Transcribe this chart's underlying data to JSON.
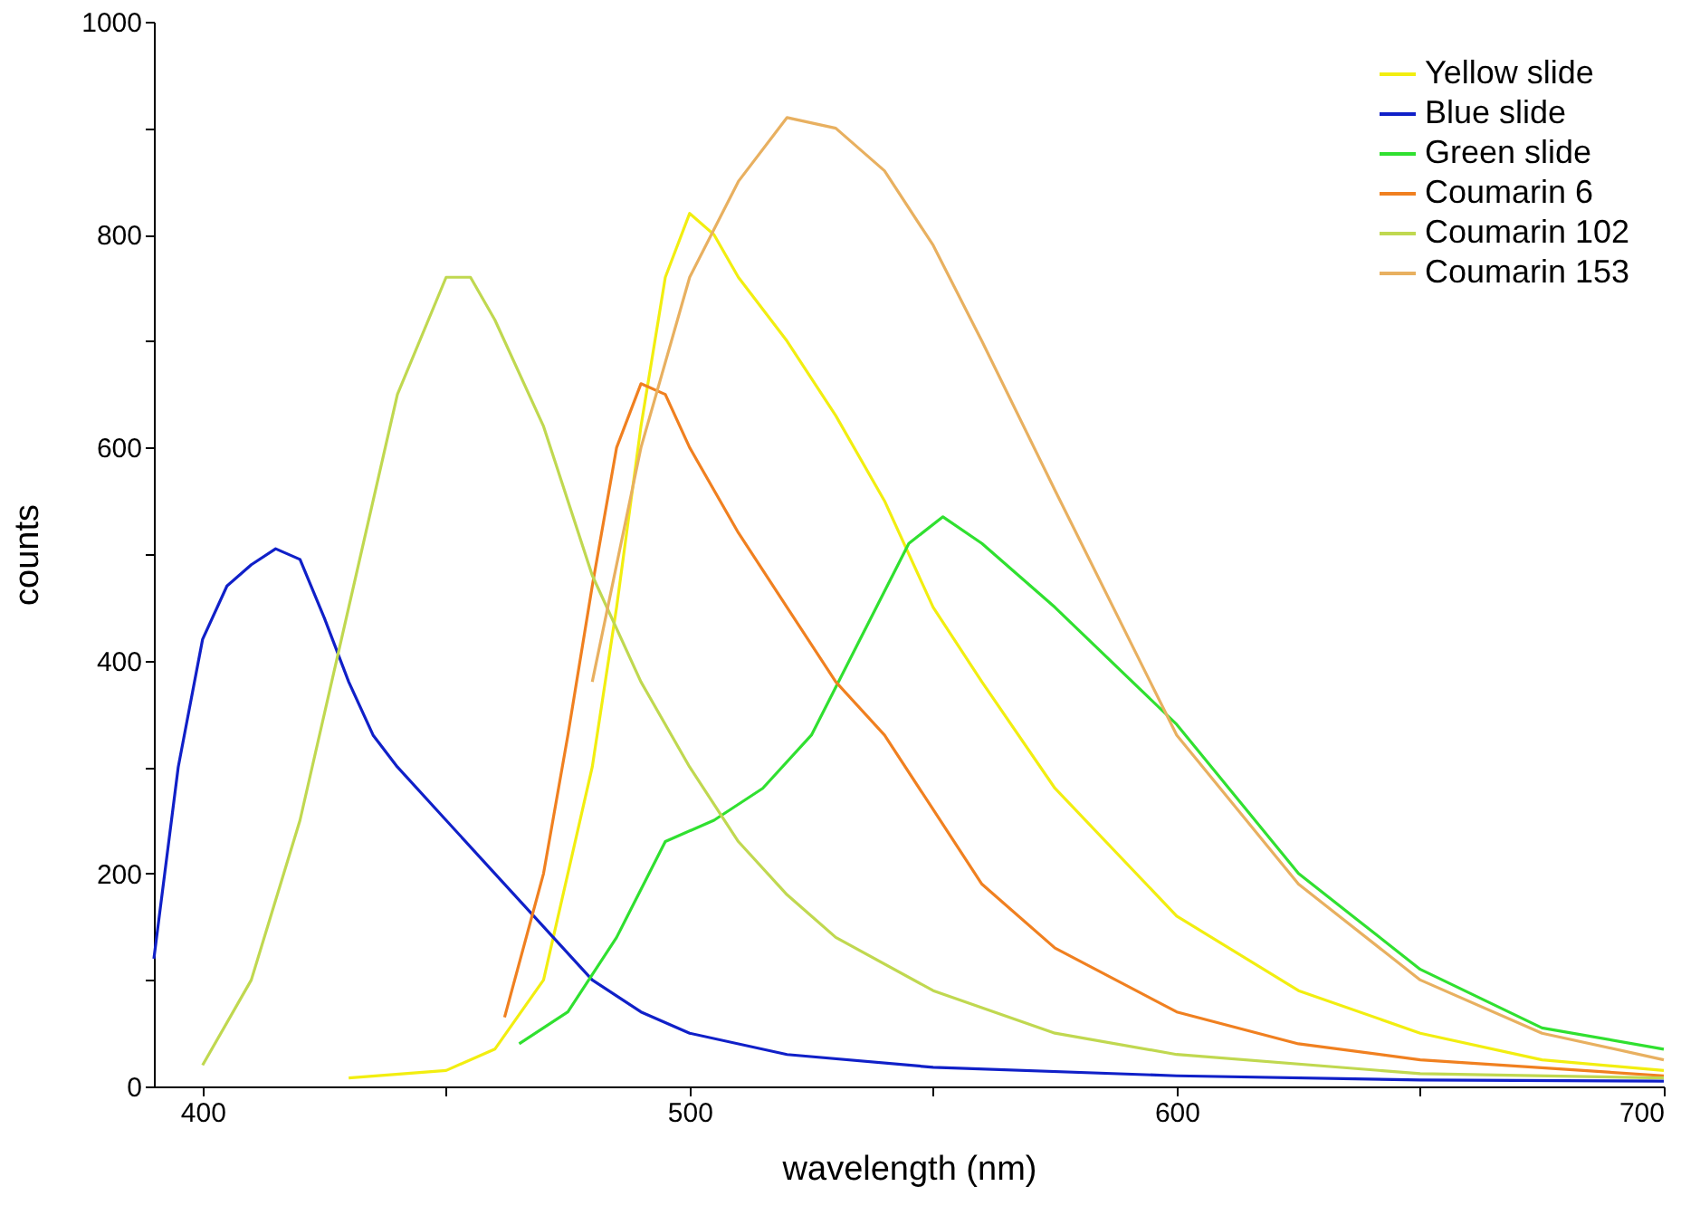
{
  "chart_data": {
    "type": "line",
    "xlabel": "wavelength (nm)",
    "ylabel": "counts",
    "xlim": [
      390,
      700
    ],
    "ylim": [
      0,
      1000
    ],
    "xticks": [
      {
        "value": 400,
        "label": "400"
      },
      {
        "value": 450,
        "label": null
      },
      {
        "value": 500,
        "label": "500"
      },
      {
        "value": 550,
        "label": null
      },
      {
        "value": 600,
        "label": "600"
      },
      {
        "value": 650,
        "label": null
      },
      {
        "value": 700,
        "label": "700"
      }
    ],
    "yticks": [
      {
        "value": 0,
        "label": "0"
      },
      {
        "value": 100,
        "label": null
      },
      {
        "value": 200,
        "label": "200"
      },
      {
        "value": 300,
        "label": null
      },
      {
        "value": 400,
        "label": "400"
      },
      {
        "value": 500,
        "label": null
      },
      {
        "value": 600,
        "label": "600"
      },
      {
        "value": 700,
        "label": null
      },
      {
        "value": 800,
        "label": "800"
      },
      {
        "value": 900,
        "label": null
      },
      {
        "value": 1000,
        "label": "1000"
      }
    ],
    "grid": false,
    "legend": "top right",
    "line_style": "solid",
    "series": [
      {
        "name": "Yellow slide",
        "color": "#f2ee10",
        "x": [
          430,
          450,
          460,
          470,
          480,
          485,
          490,
          495,
          500,
          505,
          510,
          520,
          530,
          540,
          550,
          560,
          575,
          600,
          625,
          650,
          675,
          700
        ],
        "values": [
          8,
          15,
          35,
          100,
          300,
          450,
          620,
          760,
          820,
          800,
          760,
          700,
          630,
          550,
          450,
          380,
          280,
          160,
          90,
          50,
          25,
          15
        ]
      },
      {
        "name": "Blue slide",
        "color": "#1020c8",
        "x": [
          390,
          395,
          400,
          405,
          410,
          415,
          420,
          425,
          430,
          435,
          440,
          450,
          460,
          470,
          480,
          490,
          500,
          520,
          550,
          600,
          650,
          700
        ],
        "values": [
          120,
          300,
          420,
          470,
          490,
          505,
          495,
          440,
          380,
          330,
          300,
          250,
          200,
          150,
          100,
          70,
          50,
          30,
          18,
          10,
          6,
          5
        ]
      },
      {
        "name": "Green slide",
        "color": "#30e030",
        "x": [
          465,
          475,
          485,
          495,
          505,
          515,
          525,
          535,
          545,
          552,
          560,
          575,
          600,
          625,
          650,
          675,
          700
        ],
        "values": [
          40,
          70,
          140,
          230,
          250,
          280,
          330,
          420,
          510,
          535,
          510,
          450,
          340,
          200,
          110,
          55,
          35
        ]
      },
      {
        "name": "Coumarin 6",
        "color": "#f08020",
        "x": [
          462,
          470,
          475,
          480,
          485,
          490,
          495,
          500,
          510,
          520,
          530,
          540,
          550,
          560,
          575,
          600,
          625,
          650,
          700
        ],
        "values": [
          65,
          200,
          330,
          470,
          600,
          660,
          650,
          600,
          520,
          450,
          380,
          330,
          260,
          190,
          130,
          70,
          40,
          25,
          10
        ]
      },
      {
        "name": "Coumarin 102",
        "color": "#c0d850",
        "x": [
          400,
          410,
          420,
          430,
          440,
          450,
          455,
          460,
          470,
          480,
          490,
          500,
          510,
          520,
          530,
          550,
          575,
          600,
          650,
          700
        ],
        "values": [
          20,
          100,
          250,
          450,
          650,
          760,
          760,
          720,
          620,
          480,
          380,
          300,
          230,
          180,
          140,
          90,
          50,
          30,
          12,
          8
        ]
      },
      {
        "name": "Coumarin 153",
        "color": "#e8b060",
        "x": [
          480,
          490,
          500,
          510,
          520,
          530,
          540,
          550,
          560,
          575,
          600,
          625,
          650,
          675,
          700
        ],
        "values": [
          380,
          600,
          760,
          850,
          910,
          900,
          860,
          790,
          700,
          560,
          330,
          190,
          100,
          50,
          25
        ]
      }
    ]
  }
}
